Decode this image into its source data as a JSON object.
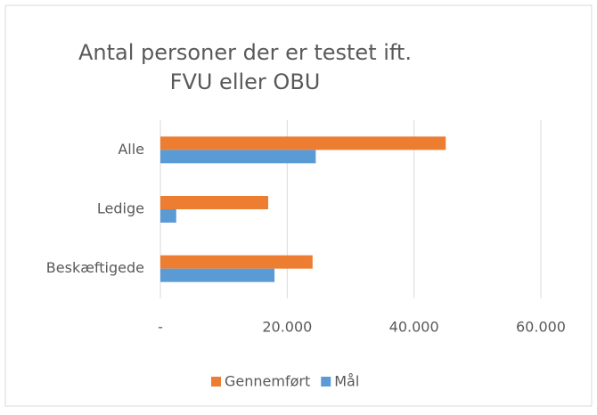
{
  "chart_data": {
    "type": "bar",
    "orientation": "horizontal",
    "title": [
      "Antal personer der er testet ift.",
      "FVU eller OBU"
    ],
    "categories": [
      "Alle",
      "Ledige",
      "Beskæftigede"
    ],
    "series": [
      {
        "name": "Gennemført",
        "color": "#ed7d31",
        "values": [
          45000,
          17000,
          24000
        ]
      },
      {
        "name": "Mål",
        "color": "#5b9bd5",
        "values": [
          24500,
          2500,
          18000
        ]
      }
    ],
    "xlim": [
      0,
      60000
    ],
    "xticks": [
      {
        "value": 0,
        "label": "-"
      },
      {
        "value": 20000,
        "label": "20.000"
      },
      {
        "value": 40000,
        "label": "40.000"
      },
      {
        "value": 60000,
        "label": "60.000"
      }
    ],
    "grid": true,
    "legend": "bottom"
  }
}
